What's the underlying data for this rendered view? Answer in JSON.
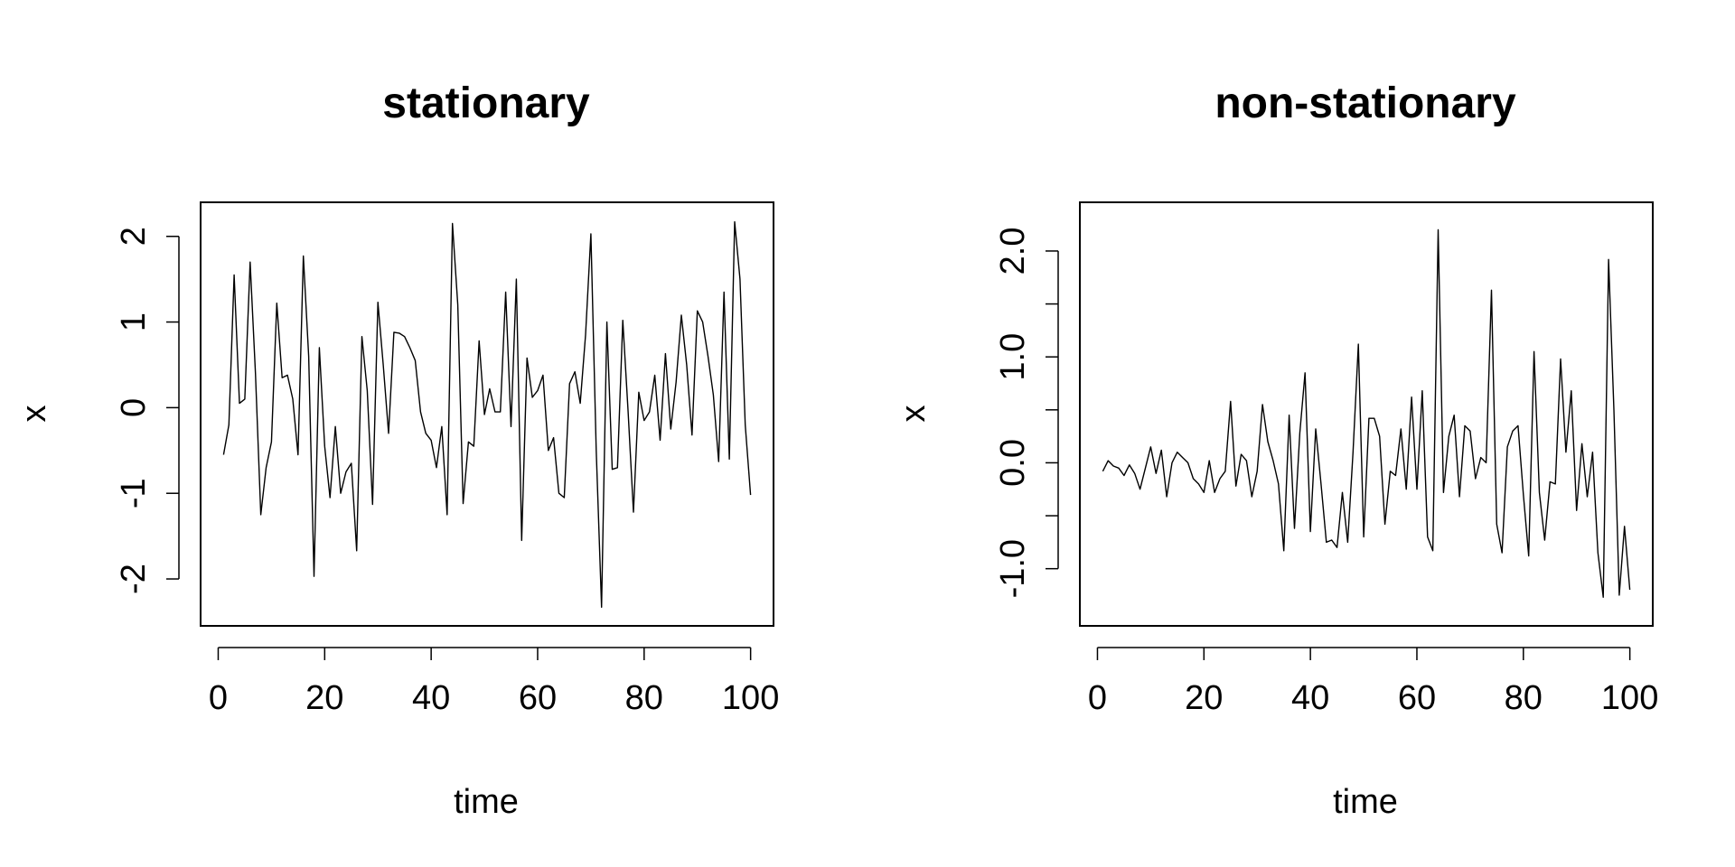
{
  "chart_data": [
    {
      "type": "line",
      "title": "stationary",
      "xlabel": "time",
      "ylabel": "x",
      "xlim": [
        1,
        100
      ],
      "ylim": [
        -2.35,
        2.2
      ],
      "xticks": [
        0,
        20,
        40,
        60,
        80,
        100
      ],
      "xtick_labels": [
        "0",
        "20",
        "40",
        "60",
        "80",
        "100"
      ],
      "yticks": [
        -2,
        -1,
        0,
        1,
        2
      ],
      "ytick_labels": [
        "-2",
        "-1",
        "0",
        "1",
        "2"
      ],
      "grid": false,
      "series": [
        {
          "x": [
            1,
            2,
            3,
            4,
            5,
            6,
            7,
            8,
            9,
            10,
            11,
            12,
            13,
            14,
            15,
            16,
            17,
            18,
            19,
            20,
            21,
            22,
            23,
            24,
            25,
            26,
            27,
            28,
            29,
            30,
            31,
            32,
            33,
            34,
            35,
            36,
            37,
            38,
            39,
            40,
            41,
            42,
            43,
            44,
            45,
            46,
            47,
            48,
            49,
            50,
            51,
            52,
            53,
            54,
            55,
            56,
            57,
            58,
            59,
            60,
            61,
            62,
            63,
            64,
            65,
            66,
            67,
            68,
            69,
            70,
            71,
            72,
            73,
            74,
            75,
            76,
            77,
            78,
            79,
            80,
            81,
            82,
            83,
            84,
            85,
            86,
            87,
            88,
            89,
            90,
            91,
            92,
            93,
            94,
            95,
            96,
            97,
            98,
            99,
            100
          ],
          "y": [
            -0.55,
            -0.2,
            1.55,
            0.05,
            0.1,
            1.7,
            0.4,
            -1.25,
            -0.7,
            -0.4,
            1.22,
            0.35,
            0.38,
            0.1,
            -0.55,
            1.77,
            0.6,
            -1.97,
            0.7,
            -0.45,
            -1.05,
            -0.22,
            -1.0,
            -0.75,
            -0.65,
            -1.67,
            0.83,
            0.2,
            -1.13,
            1.23,
            0.5,
            -0.3,
            0.88,
            0.87,
            0.83,
            0.7,
            0.55,
            -0.05,
            -0.3,
            -0.38,
            -0.7,
            -0.22,
            -1.25,
            2.15,
            1.2,
            -1.12,
            -0.4,
            -0.45,
            0.78,
            -0.08,
            0.22,
            -0.05,
            -0.05,
            1.35,
            -0.22,
            1.5,
            -1.55,
            0.58,
            0.12,
            0.2,
            0.38,
            -0.5,
            -0.35,
            -1.0,
            -1.05,
            0.28,
            0.42,
            0.05,
            0.85,
            2.03,
            -0.5,
            -2.33,
            1.0,
            -0.72,
            -0.7,
            1.02,
            -0.05,
            -1.22,
            0.18,
            -0.15,
            -0.05,
            0.38,
            -0.38,
            0.63,
            -0.25,
            0.3,
            1.08,
            0.5,
            -0.32,
            1.13,
            1.0,
            0.6,
            0.15,
            -0.63,
            1.35,
            -0.6,
            2.17,
            1.5,
            -0.2,
            -1.02
          ]
        }
      ]
    },
    {
      "type": "line",
      "title": "non-stationary",
      "xlabel": "time",
      "ylabel": "x",
      "xlim": [
        1,
        100
      ],
      "ylim": [
        -1.38,
        2.3
      ],
      "xticks": [
        0,
        20,
        40,
        60,
        80,
        100
      ],
      "xtick_labels": [
        "0",
        "20",
        "40",
        "60",
        "80",
        "100"
      ],
      "yticks": [
        -1.0,
        -0.5,
        0.0,
        0.5,
        1.0,
        1.5,
        2.0
      ],
      "ytick_labels": [
        "-1.0",
        "",
        "0.0",
        "",
        "1.0",
        "",
        "2.0"
      ],
      "grid": false,
      "series": [
        {
          "x": [
            1,
            2,
            3,
            4,
            5,
            6,
            7,
            8,
            9,
            10,
            11,
            12,
            13,
            14,
            15,
            16,
            17,
            18,
            19,
            20,
            21,
            22,
            23,
            24,
            25,
            26,
            27,
            28,
            29,
            30,
            31,
            32,
            33,
            34,
            35,
            36,
            37,
            38,
            39,
            40,
            41,
            42,
            43,
            44,
            45,
            46,
            47,
            48,
            49,
            50,
            51,
            52,
            53,
            54,
            55,
            56,
            57,
            58,
            59,
            60,
            61,
            62,
            63,
            64,
            65,
            66,
            67,
            68,
            69,
            70,
            71,
            72,
            73,
            74,
            75,
            76,
            77,
            78,
            79,
            80,
            81,
            82,
            83,
            84,
            85,
            86,
            87,
            88,
            89,
            90,
            91,
            92,
            93,
            94,
            95,
            96,
            97,
            98,
            99,
            100
          ],
          "y": [
            -0.08,
            0.02,
            -0.03,
            -0.05,
            -0.12,
            -0.02,
            -0.1,
            -0.25,
            -0.05,
            0.15,
            -0.1,
            0.12,
            -0.32,
            0.0,
            0.1,
            0.05,
            0.0,
            -0.15,
            -0.2,
            -0.28,
            0.02,
            -0.28,
            -0.15,
            -0.08,
            0.58,
            -0.22,
            0.08,
            0.02,
            -0.32,
            -0.08,
            0.55,
            0.2,
            0.02,
            -0.2,
            -0.83,
            0.45,
            -0.62,
            0.28,
            0.85,
            -0.65,
            0.32,
            -0.2,
            -0.75,
            -0.73,
            -0.8,
            -0.28,
            -0.75,
            0.1,
            1.12,
            -0.7,
            0.42,
            0.42,
            0.25,
            -0.58,
            -0.08,
            -0.12,
            0.32,
            -0.25,
            0.62,
            -0.25,
            0.68,
            -0.7,
            -0.83,
            2.2,
            -0.28,
            0.25,
            0.45,
            -0.32,
            0.35,
            0.3,
            -0.15,
            0.05,
            0.0,
            1.63,
            -0.58,
            -0.85,
            0.15,
            0.3,
            0.35,
            -0.3,
            -0.88,
            1.05,
            -0.28,
            -0.73,
            -0.18,
            -0.2,
            0.98,
            0.1,
            0.68,
            -0.45,
            0.18,
            -0.32,
            0.1,
            -0.85,
            -1.27,
            1.92,
            0.5,
            -1.25,
            -0.6,
            -1.2
          ]
        }
      ]
    }
  ]
}
